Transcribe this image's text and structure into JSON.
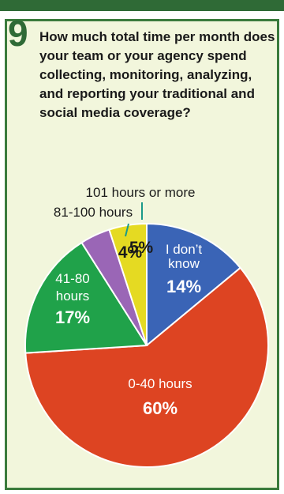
{
  "question_number": "9",
  "question_text": "How much total time per month does your team or your agency spend collecting, monitoring, analyzing, and reporting your traditional and social media coverage?",
  "colors": {
    "band": "#2f6a36",
    "panel_bg": "#f2f6dc",
    "panel_border": "#3a7b3c"
  },
  "chart_data": {
    "type": "pie",
    "title": "",
    "slices": [
      {
        "label_lines": [
          "I don’t",
          "know"
        ],
        "value": 14,
        "pct_text": "14%",
        "color": "#3a64b6",
        "label_color": "#ffffff"
      },
      {
        "label_lines": [
          "0-40 hours"
        ],
        "value": 60,
        "pct_text": "60%",
        "color": "#dd4422",
        "label_color": "#ffffff"
      },
      {
        "label_lines": [
          "41-80",
          "hours"
        ],
        "value": 17,
        "pct_text": "17%",
        "color": "#20a24a",
        "label_color": "#ffffff"
      },
      {
        "label_lines": [
          "81-100 hours"
        ],
        "value": 4,
        "pct_text": "4%",
        "color": "#9a66b6",
        "label_color": "#1a1a1a"
      },
      {
        "label_lines": [
          "101 hours or more"
        ],
        "value": 5,
        "pct_text": "5%",
        "color": "#e5da22",
        "label_color": "#1a1a1a"
      }
    ]
  }
}
